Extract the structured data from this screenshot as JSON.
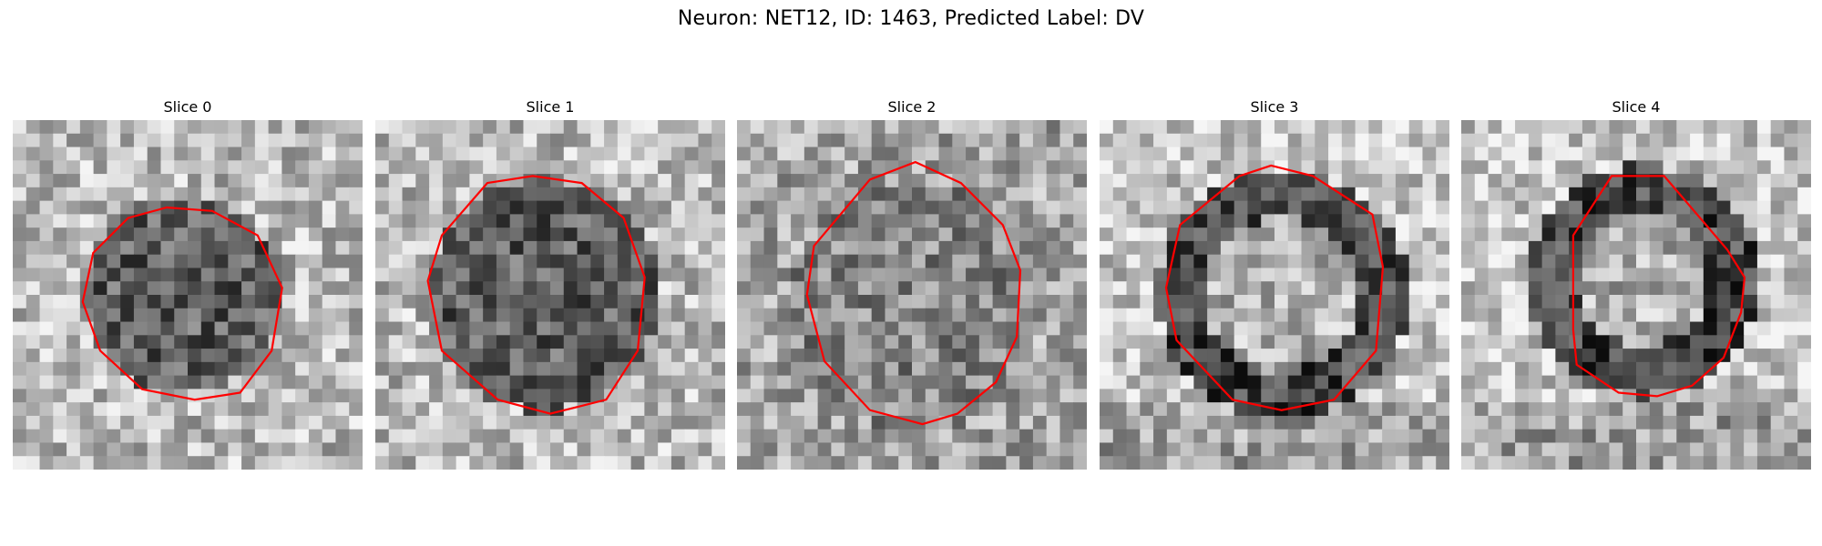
{
  "figure": {
    "title": "Neuron: NET12, ID: 1463, Predicted Label: DV"
  },
  "colors": {
    "contour": "#ff0000"
  },
  "panels": [
    {
      "title": "Slice 0",
      "pattern": "dark-blob"
    },
    {
      "title": "Slice 1",
      "pattern": "dark-blob"
    },
    {
      "title": "Slice 2",
      "pattern": "noisy-mid"
    },
    {
      "title": "Slice 3",
      "pattern": "dark-ring"
    },
    {
      "title": "Slice 4",
      "pattern": "dark-ring"
    }
  ]
}
